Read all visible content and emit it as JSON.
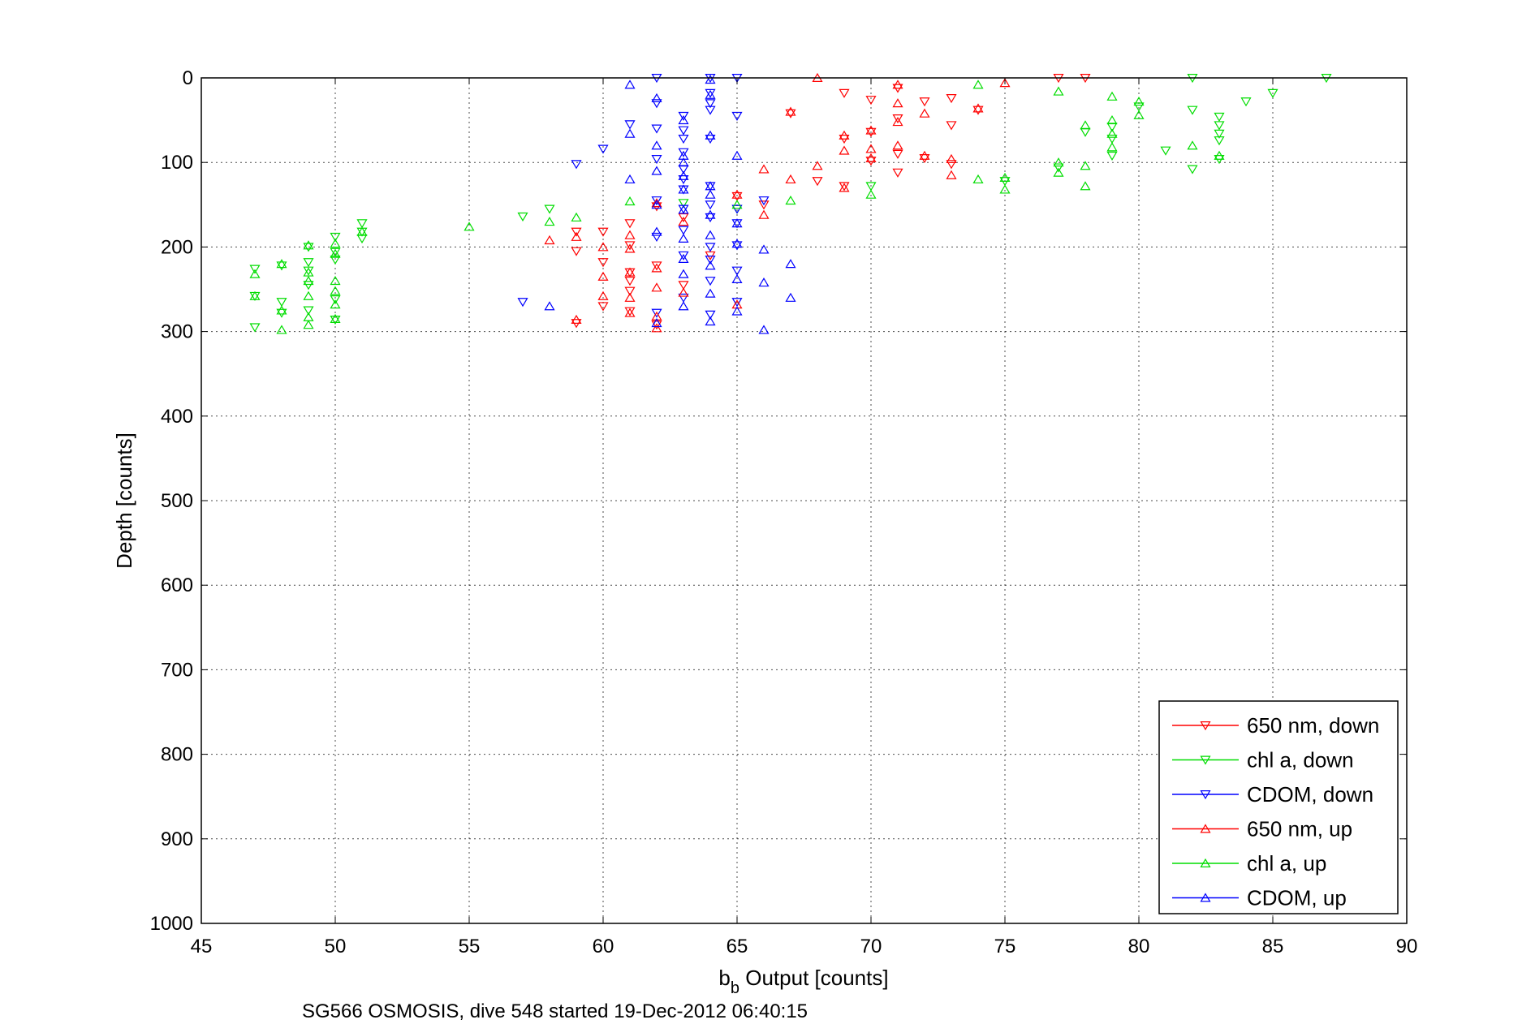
{
  "chart_data": {
    "type": "scatter",
    "title": "",
    "xlabel": "b",
    "xlabel_sub": "b",
    "xlabel_rest": " Output [counts]",
    "ylabel": "Depth [counts]",
    "caption": "SG566 OSMOSIS, dive 548 started 19-Dec-2012 06:40:15",
    "xlim": [
      45,
      90
    ],
    "ylim": [
      0,
      1000
    ],
    "y_reversed": true,
    "grid": true,
    "legend_position": "bottom-right",
    "xticks": [
      45,
      50,
      55,
      60,
      65,
      70,
      75,
      80,
      85,
      90
    ],
    "yticks": [
      0,
      100,
      200,
      300,
      400,
      500,
      600,
      700,
      800,
      900,
      1000
    ],
    "series": [
      {
        "name": "650 nm, down",
        "color": "#ff0000",
        "marker": "triangle-down",
        "points": [
          [
            77,
            0
          ],
          [
            78,
            0
          ],
          [
            71,
            12
          ],
          [
            72,
            28
          ],
          [
            73,
            24
          ],
          [
            70,
            26
          ],
          [
            69,
            18
          ],
          [
            71,
            48
          ],
          [
            73,
            56
          ],
          [
            70,
            64
          ],
          [
            69,
            72
          ],
          [
            71,
            90
          ],
          [
            72,
            95
          ],
          [
            73,
            102
          ],
          [
            71,
            112
          ],
          [
            68,
            122
          ],
          [
            67,
            42
          ],
          [
            74,
            38
          ],
          [
            70,
            98
          ],
          [
            69,
            128
          ],
          [
            65,
            140
          ],
          [
            66,
            150
          ],
          [
            62,
            152
          ],
          [
            61,
            172
          ],
          [
            59,
            182
          ],
          [
            60,
            182
          ],
          [
            61,
            198
          ],
          [
            59,
            205
          ],
          [
            60,
            218
          ],
          [
            62,
            222
          ],
          [
            61,
            230
          ],
          [
            63,
            245
          ],
          [
            61,
            252
          ],
          [
            60,
            270
          ],
          [
            61,
            276
          ],
          [
            59,
            290
          ],
          [
            62,
            292
          ],
          [
            64,
            210
          ],
          [
            61,
            240
          ],
          [
            63,
            165
          ]
        ]
      },
      {
        "name": "chl a, down",
        "color": "#00dd00",
        "marker": "triangle-down",
        "points": [
          [
            87,
            0
          ],
          [
            82,
            0
          ],
          [
            85,
            18
          ],
          [
            84,
            28
          ],
          [
            82,
            38
          ],
          [
            83,
            46
          ],
          [
            83,
            56
          ],
          [
            83,
            66
          ],
          [
            83,
            74
          ],
          [
            79,
            58
          ],
          [
            78,
            64
          ],
          [
            80,
            34
          ],
          [
            79,
            72
          ],
          [
            81,
            86
          ],
          [
            79,
            92
          ],
          [
            82,
            108
          ],
          [
            83,
            96
          ],
          [
            77,
            106
          ],
          [
            75,
            122
          ],
          [
            70,
            128
          ],
          [
            63,
            148
          ],
          [
            65,
            155
          ],
          [
            58,
            155
          ],
          [
            57,
            164
          ],
          [
            51,
            172
          ],
          [
            51,
            182
          ],
          [
            51,
            190
          ],
          [
            50,
            188
          ],
          [
            50,
            206
          ],
          [
            49,
            200
          ],
          [
            49,
            218
          ],
          [
            48,
            222
          ],
          [
            47,
            226
          ],
          [
            50,
            215
          ],
          [
            49,
            228
          ],
          [
            49,
            245
          ],
          [
            48,
            265
          ],
          [
            47,
            258
          ],
          [
            50,
            262
          ],
          [
            49,
            275
          ],
          [
            48,
            278
          ],
          [
            50,
            286
          ],
          [
            47,
            295
          ]
        ]
      },
      {
        "name": "CDOM, down",
        "color": "#0000ff",
        "marker": "triangle-down",
        "points": [
          [
            62,
            0
          ],
          [
            65,
            0
          ],
          [
            64,
            0
          ],
          [
            64,
            18
          ],
          [
            64,
            30
          ],
          [
            62,
            30
          ],
          [
            63,
            45
          ],
          [
            61,
            55
          ],
          [
            62,
            60
          ],
          [
            64,
            38
          ],
          [
            65,
            45
          ],
          [
            63,
            62
          ],
          [
            63,
            72
          ],
          [
            63,
            88
          ],
          [
            64,
            72
          ],
          [
            60,
            84
          ],
          [
            62,
            96
          ],
          [
            59,
            102
          ],
          [
            63,
            108
          ],
          [
            63,
            120
          ],
          [
            63,
            132
          ],
          [
            64,
            128
          ],
          [
            64,
            150
          ],
          [
            65,
            155
          ],
          [
            63,
            155
          ],
          [
            62,
            145
          ],
          [
            64,
            165
          ],
          [
            65,
            172
          ],
          [
            63,
            180
          ],
          [
            62,
            188
          ],
          [
            64,
            200
          ],
          [
            65,
            198
          ],
          [
            63,
            210
          ],
          [
            64,
            215
          ],
          [
            65,
            228
          ],
          [
            64,
            240
          ],
          [
            63,
            260
          ],
          [
            62,
            278
          ],
          [
            64,
            280
          ],
          [
            65,
            265
          ],
          [
            66,
            145
          ],
          [
            57,
            265
          ]
        ]
      },
      {
        "name": "650 nm, up",
        "color": "#ff0000",
        "marker": "triangle-up",
        "points": [
          [
            68,
            0
          ],
          [
            75,
            6
          ],
          [
            71,
            8
          ],
          [
            74,
            36
          ],
          [
            67,
            40
          ],
          [
            71,
            30
          ],
          [
            72,
            42
          ],
          [
            71,
            52
          ],
          [
            69,
            68
          ],
          [
            70,
            62
          ],
          [
            70,
            84
          ],
          [
            71,
            80
          ],
          [
            69,
            86
          ],
          [
            72,
            92
          ],
          [
            73,
            96
          ],
          [
            73,
            115
          ],
          [
            70,
            95
          ],
          [
            68,
            104
          ],
          [
            67,
            120
          ],
          [
            69,
            130
          ],
          [
            66,
            108
          ],
          [
            65,
            138
          ],
          [
            66,
            162
          ],
          [
            62,
            148
          ],
          [
            61,
            186
          ],
          [
            58,
            192
          ],
          [
            59,
            188
          ],
          [
            60,
            200
          ],
          [
            61,
            202
          ],
          [
            62,
            225
          ],
          [
            60,
            235
          ],
          [
            61,
            230
          ],
          [
            62,
            248
          ],
          [
            60,
            258
          ],
          [
            61,
            260
          ],
          [
            63,
            254
          ],
          [
            61,
            278
          ],
          [
            59,
            286
          ],
          [
            62,
            282
          ],
          [
            62,
            296
          ],
          [
            65,
            268
          ],
          [
            63,
            170
          ]
        ]
      },
      {
        "name": "chl a, up",
        "color": "#00dd00",
        "marker": "triangle-up",
        "points": [
          [
            74,
            8
          ],
          [
            77,
            16
          ],
          [
            79,
            22
          ],
          [
            80,
            28
          ],
          [
            80,
            44
          ],
          [
            79,
            50
          ],
          [
            78,
            56
          ],
          [
            79,
            66
          ],
          [
            79,
            82
          ],
          [
            82,
            80
          ],
          [
            83,
            92
          ],
          [
            77,
            100
          ],
          [
            78,
            104
          ],
          [
            77,
            112
          ],
          [
            75,
            118
          ],
          [
            78,
            128
          ],
          [
            75,
            132
          ],
          [
            70,
            138
          ],
          [
            74,
            120
          ],
          [
            67,
            145
          ],
          [
            65,
            150
          ],
          [
            61,
            146
          ],
          [
            59,
            165
          ],
          [
            58,
            170
          ],
          [
            55,
            176
          ],
          [
            51,
            182
          ],
          [
            50,
            196
          ],
          [
            50,
            208
          ],
          [
            49,
            198
          ],
          [
            48,
            220
          ],
          [
            49,
            230
          ],
          [
            47,
            232
          ],
          [
            49,
            240
          ],
          [
            50,
            240
          ],
          [
            50,
            252
          ],
          [
            49,
            258
          ],
          [
            47,
            258
          ],
          [
            50,
            268
          ],
          [
            48,
            275
          ],
          [
            49,
            283
          ],
          [
            50,
            285
          ],
          [
            48,
            298
          ],
          [
            49,
            292
          ]
        ]
      },
      {
        "name": "CDOM, up",
        "color": "#0000ff",
        "marker": "triangle-up",
        "points": [
          [
            61,
            8
          ],
          [
            62,
            24
          ],
          [
            64,
            2
          ],
          [
            64,
            20
          ],
          [
            63,
            50
          ],
          [
            61,
            66
          ],
          [
            62,
            80
          ],
          [
            64,
            68
          ],
          [
            63,
            92
          ],
          [
            65,
            92
          ],
          [
            63,
            100
          ],
          [
            63,
            116
          ],
          [
            62,
            110
          ],
          [
            64,
            128
          ],
          [
            64,
            138
          ],
          [
            63,
            132
          ],
          [
            61,
            120
          ],
          [
            62,
            150
          ],
          [
            63,
            156
          ],
          [
            64,
            162
          ],
          [
            65,
            172
          ],
          [
            62,
            182
          ],
          [
            63,
            190
          ],
          [
            64,
            186
          ],
          [
            66,
            203
          ],
          [
            65,
            196
          ],
          [
            63,
            214
          ],
          [
            64,
            222
          ],
          [
            63,
            232
          ],
          [
            65,
            238
          ],
          [
            64,
            255
          ],
          [
            63,
            270
          ],
          [
            62,
            290
          ],
          [
            64,
            288
          ],
          [
            65,
            276
          ],
          [
            66,
            242
          ],
          [
            67,
            220
          ],
          [
            67,
            260
          ],
          [
            66,
            298
          ],
          [
            58,
            270
          ]
        ]
      }
    ]
  }
}
